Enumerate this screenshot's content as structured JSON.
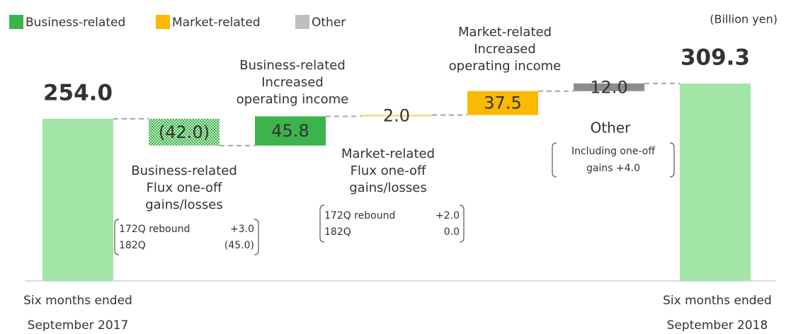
{
  "chart_data": {
    "type": "waterfall",
    "unit_label": "(Billion yen)",
    "legend": [
      {
        "name": "Business-related",
        "color": "#3cb44b"
      },
      {
        "name": "Market-related",
        "color": "#fbb900"
      },
      {
        "name": "Other",
        "color": "#bfbfbf"
      }
    ],
    "categories": [
      [
        "Six months ended",
        "September 2017"
      ],
      [
        "Business-related",
        "Flux one-off",
        "gains/losses"
      ],
      [
        "Business-related",
        "Increased",
        "operating income"
      ],
      [
        "Market-related",
        "Flux one-off",
        "gains/losses"
      ],
      [
        "Market-related",
        "Increased",
        "operating income"
      ],
      [
        "Other"
      ],
      [
        "Six months ended",
        "September 2018"
      ]
    ],
    "values": [
      254.0,
      -42.0,
      45.8,
      2.0,
      37.5,
      12.0,
      309.3
    ],
    "value_labels": [
      "254.0",
      "(42.0)",
      "45.8",
      "2.0",
      "37.5",
      "12.0",
      "309.3"
    ],
    "kinds": [
      "total",
      "business-hatched",
      "business",
      "market-hatched",
      "market",
      "other",
      "total"
    ],
    "colors": {
      "total": "#a3e4a7",
      "business": "#3cb44b",
      "market": "#fbb900",
      "other": "#8c8c8c"
    },
    "notes": [
      null,
      [
        [
          "172Q rebound",
          "+3.0"
        ],
        [
          "182Q",
          "(45.0)"
        ]
      ],
      null,
      [
        [
          "172Q rebound",
          "+2.0"
        ],
        [
          "182Q",
          "0.0"
        ]
      ],
      null,
      [
        [
          "Including one-off"
        ],
        [
          "gains +4.0"
        ]
      ],
      null
    ],
    "ylim": [
      0,
      440
    ]
  }
}
